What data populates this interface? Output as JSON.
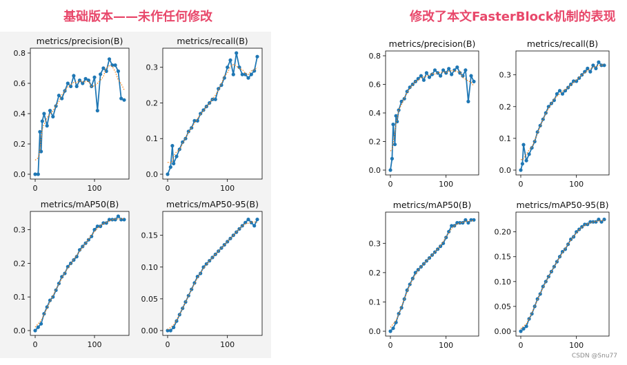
{
  "headings": {
    "left": "基础版本——未作任何修改",
    "right": "修改了本文FasterBlock机制的表现"
  },
  "watermark": "CSDN @Snu77",
  "colors": {
    "heading": "#e8486b",
    "series": "#1f77b4",
    "smooth": "#ff7f0e",
    "panel_bg": "#f3f3f3"
  },
  "chart_data": [
    {
      "group": "left",
      "type": "line",
      "title": "metrics/precision(B)",
      "xlim": [
        0,
        150
      ],
      "ylim": [
        0,
        0.8
      ],
      "yticks": [
        "0.0",
        "0.2",
        "0.4",
        "0.6",
        "0.8"
      ],
      "xticks": [
        "0",
        "100"
      ],
      "x": [
        0,
        5,
        8,
        10,
        12,
        15,
        20,
        25,
        30,
        35,
        40,
        45,
        50,
        55,
        60,
        65,
        70,
        75,
        80,
        85,
        90,
        95,
        100,
        105,
        110,
        115,
        120,
        125,
        130,
        135,
        140,
        145,
        150
      ],
      "y": [
        0.0,
        0.0,
        0.28,
        0.15,
        0.35,
        0.4,
        0.32,
        0.42,
        0.38,
        0.45,
        0.52,
        0.5,
        0.55,
        0.6,
        0.58,
        0.65,
        0.58,
        0.62,
        0.6,
        0.63,
        0.62,
        0.58,
        0.64,
        0.42,
        0.66,
        0.7,
        0.68,
        0.76,
        0.72,
        0.72,
        0.68,
        0.5,
        0.49
      ]
    },
    {
      "group": "left",
      "type": "line",
      "title": "metrics/recall(B)",
      "xlim": [
        0,
        150
      ],
      "ylim": [
        0,
        0.34
      ],
      "yticks": [
        "0.0",
        "0.1",
        "0.2",
        "0.3"
      ],
      "xticks": [
        "0",
        "100"
      ],
      "x": [
        0,
        5,
        8,
        10,
        15,
        20,
        25,
        30,
        35,
        40,
        45,
        50,
        55,
        60,
        65,
        70,
        75,
        80,
        85,
        90,
        95,
        100,
        105,
        110,
        115,
        120,
        125,
        130,
        135,
        140,
        145,
        150
      ],
      "y": [
        0.0,
        0.02,
        0.08,
        0.03,
        0.05,
        0.07,
        0.09,
        0.1,
        0.12,
        0.13,
        0.15,
        0.15,
        0.17,
        0.18,
        0.19,
        0.2,
        0.21,
        0.21,
        0.24,
        0.25,
        0.27,
        0.3,
        0.32,
        0.28,
        0.34,
        0.3,
        0.28,
        0.28,
        0.27,
        0.28,
        0.29,
        0.33
      ]
    },
    {
      "group": "left",
      "type": "line",
      "title": "metrics/mAP50(B)",
      "xlim": [
        0,
        150
      ],
      "ylim": [
        0,
        0.34
      ],
      "yticks": [
        "0.0",
        "0.1",
        "0.2",
        "0.3"
      ],
      "xticks": [
        "0",
        "100"
      ],
      "x": [
        0,
        5,
        10,
        15,
        20,
        25,
        30,
        35,
        40,
        45,
        50,
        55,
        60,
        65,
        70,
        75,
        80,
        85,
        90,
        95,
        100,
        105,
        110,
        115,
        120,
        125,
        130,
        135,
        140,
        145,
        150
      ],
      "y": [
        0.0,
        0.01,
        0.02,
        0.05,
        0.07,
        0.09,
        0.1,
        0.12,
        0.14,
        0.16,
        0.17,
        0.19,
        0.2,
        0.21,
        0.22,
        0.24,
        0.25,
        0.26,
        0.27,
        0.28,
        0.3,
        0.31,
        0.31,
        0.32,
        0.32,
        0.33,
        0.33,
        0.33,
        0.34,
        0.33,
        0.33
      ]
    },
    {
      "group": "left",
      "type": "line",
      "title": "metrics/mAP50-95(B)",
      "xlim": [
        0,
        150
      ],
      "ylim": [
        0,
        0.18
      ],
      "yticks": [
        "0.00",
        "0.05",
        "0.10",
        "0.15"
      ],
      "xticks": [
        "0",
        "100"
      ],
      "x": [
        0,
        5,
        10,
        15,
        20,
        25,
        30,
        35,
        40,
        45,
        50,
        55,
        60,
        65,
        70,
        75,
        80,
        85,
        90,
        95,
        100,
        105,
        110,
        115,
        120,
        125,
        130,
        135,
        140,
        145,
        150
      ],
      "y": [
        0.0,
        0.0,
        0.005,
        0.015,
        0.025,
        0.035,
        0.045,
        0.055,
        0.065,
        0.075,
        0.085,
        0.09,
        0.1,
        0.105,
        0.11,
        0.115,
        0.12,
        0.125,
        0.13,
        0.135,
        0.14,
        0.145,
        0.15,
        0.155,
        0.16,
        0.165,
        0.17,
        0.175,
        0.17,
        0.165,
        0.175
      ]
    },
    {
      "group": "right",
      "type": "line",
      "title": "metrics/precision(B)",
      "xlim": [
        0,
        150
      ],
      "ylim": [
        0,
        0.8
      ],
      "yticks": [
        "0.0",
        "0.2",
        "0.4",
        "0.6",
        "0.8"
      ],
      "xticks": [
        "0",
        "100"
      ],
      "x": [
        0,
        3,
        5,
        8,
        10,
        12,
        15,
        20,
        25,
        30,
        35,
        40,
        45,
        50,
        55,
        60,
        65,
        70,
        75,
        80,
        85,
        90,
        95,
        100,
        105,
        110,
        115,
        120,
        125,
        130,
        135,
        140,
        145,
        150
      ],
      "y": [
        0.0,
        0.08,
        0.32,
        0.18,
        0.38,
        0.34,
        0.42,
        0.48,
        0.5,
        0.55,
        0.58,
        0.6,
        0.62,
        0.64,
        0.66,
        0.63,
        0.68,
        0.65,
        0.67,
        0.7,
        0.68,
        0.66,
        0.7,
        0.68,
        0.71,
        0.67,
        0.7,
        0.72,
        0.68,
        0.66,
        0.7,
        0.48,
        0.66,
        0.62
      ]
    },
    {
      "group": "right",
      "type": "line",
      "title": "metrics/recall(B)",
      "xlim": [
        0,
        150
      ],
      "ylim": [
        0,
        0.36
      ],
      "yticks": [
        "0.0",
        "0.1",
        "0.2",
        "0.3"
      ],
      "xticks": [
        "0",
        "100"
      ],
      "x": [
        0,
        3,
        5,
        10,
        15,
        20,
        25,
        30,
        35,
        40,
        45,
        50,
        55,
        60,
        65,
        70,
        75,
        80,
        85,
        90,
        95,
        100,
        105,
        110,
        115,
        120,
        125,
        130,
        135,
        140,
        145,
        150
      ],
      "y": [
        0.0,
        0.02,
        0.08,
        0.03,
        0.05,
        0.07,
        0.09,
        0.12,
        0.14,
        0.16,
        0.18,
        0.2,
        0.21,
        0.22,
        0.24,
        0.25,
        0.24,
        0.25,
        0.26,
        0.27,
        0.28,
        0.28,
        0.29,
        0.3,
        0.31,
        0.32,
        0.31,
        0.33,
        0.32,
        0.34,
        0.33,
        0.33
      ]
    },
    {
      "group": "right",
      "type": "line",
      "title": "metrics/mAP50(B)",
      "xlim": [
        0,
        150
      ],
      "ylim": [
        0,
        0.39
      ],
      "yticks": [
        "0.0",
        "0.1",
        "0.2",
        "0.3"
      ],
      "xticks": [
        "0",
        "100"
      ],
      "x": [
        0,
        5,
        10,
        15,
        20,
        25,
        30,
        35,
        40,
        45,
        50,
        55,
        60,
        65,
        70,
        75,
        80,
        85,
        90,
        95,
        100,
        105,
        110,
        115,
        120,
        125,
        130,
        135,
        140,
        145,
        150
      ],
      "y": [
        0.0,
        0.01,
        0.03,
        0.06,
        0.08,
        0.11,
        0.14,
        0.16,
        0.18,
        0.2,
        0.21,
        0.22,
        0.23,
        0.24,
        0.25,
        0.26,
        0.27,
        0.28,
        0.29,
        0.3,
        0.32,
        0.34,
        0.36,
        0.36,
        0.37,
        0.37,
        0.37,
        0.38,
        0.37,
        0.38,
        0.38
      ]
    },
    {
      "group": "right",
      "type": "line",
      "title": "metrics/mAP50-95(B)",
      "xlim": [
        0,
        150
      ],
      "ylim": [
        0,
        0.23
      ],
      "yticks": [
        "0.00",
        "0.05",
        "0.10",
        "0.15",
        "0.20"
      ],
      "xticks": [
        "0",
        "100"
      ],
      "x": [
        0,
        5,
        10,
        15,
        20,
        25,
        30,
        35,
        40,
        45,
        50,
        55,
        60,
        65,
        70,
        75,
        80,
        85,
        90,
        95,
        100,
        105,
        110,
        115,
        120,
        125,
        130,
        135,
        140,
        145,
        150
      ],
      "y": [
        0.0,
        0.005,
        0.01,
        0.025,
        0.035,
        0.05,
        0.065,
        0.075,
        0.09,
        0.1,
        0.11,
        0.12,
        0.13,
        0.14,
        0.15,
        0.16,
        0.165,
        0.175,
        0.185,
        0.19,
        0.2,
        0.205,
        0.21,
        0.215,
        0.215,
        0.22,
        0.22,
        0.22,
        0.225,
        0.22,
        0.225
      ]
    }
  ]
}
